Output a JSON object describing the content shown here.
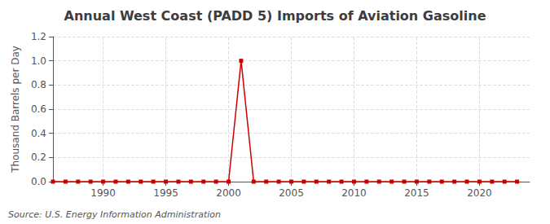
{
  "chart_data": {
    "type": "line",
    "title": "Annual West Coast (PADD 5) Imports of Aviation Gasoline",
    "ylabel": "Thousand Barrels per Day",
    "annotation": "Source: U.S. Energy Information Administration",
    "x": [
      1986,
      1987,
      1988,
      1989,
      1990,
      1991,
      1992,
      1993,
      1994,
      1995,
      1996,
      1997,
      1998,
      1999,
      2000,
      2001,
      2002,
      2003,
      2004,
      2005,
      2006,
      2007,
      2008,
      2009,
      2010,
      2011,
      2012,
      2013,
      2014,
      2015,
      2016,
      2017,
      2018,
      2019,
      2020,
      2021,
      2022,
      2023
    ],
    "values": [
      0,
      0,
      0,
      0,
      0,
      0,
      0,
      0,
      0,
      0,
      0,
      0,
      0,
      0,
      0,
      1.0,
      0,
      0,
      0,
      0,
      0,
      0,
      0,
      0,
      0,
      0,
      0,
      0,
      0,
      0,
      0,
      0,
      0,
      0,
      0,
      0,
      0,
      0
    ],
    "color": "#cc0000",
    "marker": "square",
    "xlim": [
      1986,
      2024
    ],
    "xticks": [
      1990,
      1995,
      2000,
      2005,
      2010,
      2015,
      2020
    ],
    "ylim": [
      0,
      1.2
    ],
    "yticks": [
      {
        "value": 0.0,
        "label": "0.0"
      },
      0.2,
      0.4,
      0.6,
      0.8,
      {
        "value": 1.0,
        "label": "1.0"
      },
      1.2
    ],
    "grid": true
  }
}
